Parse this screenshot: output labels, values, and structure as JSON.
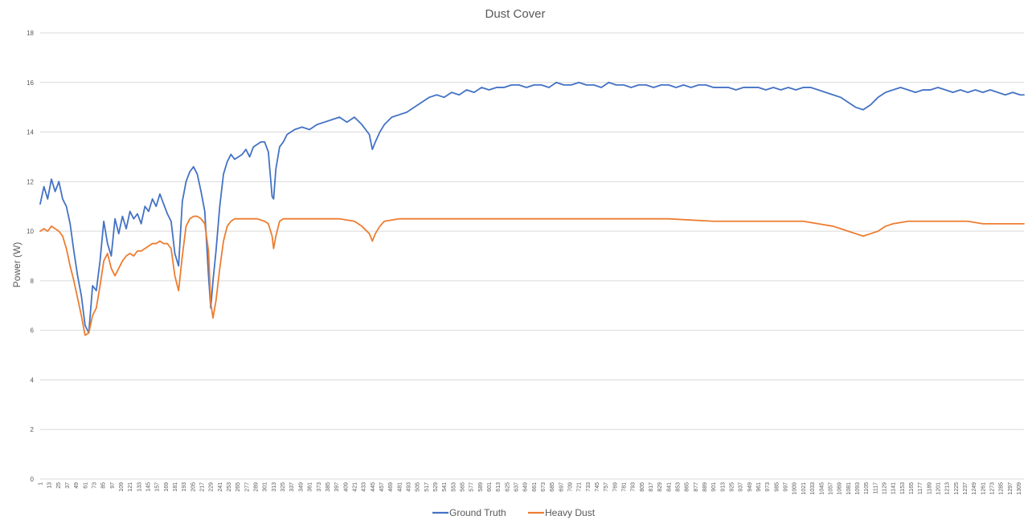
{
  "chart_data": {
    "type": "line",
    "title": "Dust Cover",
    "xlabel": "",
    "ylabel": "Power (W)",
    "ylim": [
      0,
      18
    ],
    "yticks": [
      0,
      2,
      4,
      6,
      8,
      10,
      12,
      14,
      16,
      18
    ],
    "grid": true,
    "legend_position": "bottom",
    "x_range": [
      1,
      1316
    ],
    "x_tick_start": 1,
    "x_tick_step": 12,
    "series": [
      {
        "name": "Ground Truth",
        "color": "#4472C4",
        "x": [
          1,
          6,
          11,
          16,
          21,
          26,
          31,
          36,
          41,
          46,
          51,
          56,
          61,
          66,
          71,
          76,
          81,
          86,
          91,
          96,
          101,
          106,
          111,
          116,
          121,
          126,
          131,
          136,
          141,
          146,
          151,
          156,
          161,
          166,
          171,
          176,
          181,
          186,
          191,
          196,
          201,
          206,
          211,
          216,
          221,
          226,
          229,
          232,
          236,
          241,
          246,
          251,
          256,
          261,
          266,
          271,
          276,
          281,
          286,
          291,
          296,
          301,
          306,
          311,
          313,
          316,
          321,
          326,
          331,
          341,
          351,
          361,
          371,
          381,
          391,
          401,
          411,
          421,
          431,
          441,
          445,
          449,
          455,
          461,
          471,
          481,
          491,
          501,
          511,
          521,
          531,
          541,
          551,
          561,
          571,
          581,
          591,
          601,
          611,
          621,
          631,
          641,
          651,
          661,
          671,
          681,
          691,
          701,
          711,
          721,
          731,
          741,
          751,
          761,
          771,
          781,
          791,
          801,
          811,
          821,
          831,
          841,
          851,
          861,
          871,
          881,
          891,
          901,
          911,
          921,
          931,
          941,
          951,
          961,
          971,
          981,
          991,
          1001,
          1011,
          1021,
          1031,
          1041,
          1051,
          1061,
          1071,
          1081,
          1091,
          1101,
          1111,
          1121,
          1131,
          1141,
          1151,
          1161,
          1171,
          1181,
          1191,
          1201,
          1211,
          1221,
          1231,
          1241,
          1251,
          1261,
          1271,
          1281,
          1291,
          1301,
          1311,
          1316
        ],
        "values": [
          11.1,
          11.8,
          11.3,
          12.1,
          11.6,
          12.0,
          11.3,
          11.0,
          10.3,
          9.2,
          8.2,
          7.4,
          6.2,
          5.9,
          7.8,
          7.6,
          8.8,
          10.4,
          9.5,
          9.0,
          10.5,
          9.9,
          10.6,
          10.1,
          10.8,
          10.5,
          10.7,
          10.3,
          11.0,
          10.8,
          11.3,
          11.0,
          11.5,
          11.1,
          10.7,
          10.4,
          9.1,
          8.6,
          11.2,
          12.0,
          12.4,
          12.6,
          12.3,
          11.6,
          10.8,
          8.2,
          6.9,
          8.0,
          9.2,
          11.0,
          12.3,
          12.8,
          13.1,
          12.9,
          13.0,
          13.1,
          13.3,
          13.0,
          13.4,
          13.5,
          13.6,
          13.6,
          13.2,
          11.4,
          11.3,
          12.5,
          13.4,
          13.6,
          13.9,
          14.1,
          14.2,
          14.1,
          14.3,
          14.4,
          14.5,
          14.6,
          14.4,
          14.6,
          14.3,
          13.9,
          13.3,
          13.6,
          14.0,
          14.3,
          14.6,
          14.7,
          14.8,
          15.0,
          15.2,
          15.4,
          15.5,
          15.4,
          15.6,
          15.5,
          15.7,
          15.6,
          15.8,
          15.7,
          15.8,
          15.8,
          15.9,
          15.9,
          15.8,
          15.9,
          15.9,
          15.8,
          16.0,
          15.9,
          15.9,
          16.0,
          15.9,
          15.9,
          15.8,
          16.0,
          15.9,
          15.9,
          15.8,
          15.9,
          15.9,
          15.8,
          15.9,
          15.9,
          15.8,
          15.9,
          15.8,
          15.9,
          15.9,
          15.8,
          15.8,
          15.8,
          15.7,
          15.8,
          15.8,
          15.8,
          15.7,
          15.8,
          15.7,
          15.8,
          15.7,
          15.8,
          15.8,
          15.7,
          15.6,
          15.5,
          15.4,
          15.2,
          15.0,
          14.9,
          15.1,
          15.4,
          15.6,
          15.7,
          15.8,
          15.7,
          15.6,
          15.7,
          15.7,
          15.8,
          15.7,
          15.6,
          15.7,
          15.6,
          15.7,
          15.6,
          15.7,
          15.6,
          15.5,
          15.6,
          15.5,
          15.5
        ]
      },
      {
        "name": "Heavy Dust",
        "color": "#ED7D31",
        "x": [
          1,
          6,
          11,
          16,
          21,
          26,
          31,
          36,
          41,
          46,
          51,
          56,
          61,
          66,
          71,
          76,
          81,
          86,
          91,
          96,
          101,
          106,
          111,
          116,
          121,
          126,
          131,
          136,
          141,
          146,
          151,
          156,
          161,
          166,
          171,
          176,
          181,
          186,
          191,
          196,
          201,
          206,
          211,
          216,
          221,
          226,
          229,
          232,
          236,
          241,
          246,
          251,
          256,
          261,
          271,
          281,
          291,
          301,
          306,
          311,
          313,
          316,
          321,
          326,
          341,
          361,
          381,
          401,
          421,
          431,
          441,
          445,
          449,
          455,
          461,
          481,
          501,
          541,
          601,
          661,
          721,
          781,
          841,
          901,
          961,
          1021,
          1041,
          1061,
          1071,
          1081,
          1091,
          1101,
          1111,
          1121,
          1131,
          1141,
          1161,
          1181,
          1201,
          1221,
          1241,
          1261,
          1281,
          1301,
          1316
        ],
        "values": [
          10.0,
          10.1,
          10.0,
          10.2,
          10.1,
          10.0,
          9.8,
          9.3,
          8.6,
          8.0,
          7.3,
          6.6,
          5.8,
          5.9,
          6.6,
          6.9,
          7.8,
          8.8,
          9.1,
          8.5,
          8.2,
          8.5,
          8.8,
          9.0,
          9.1,
          9.0,
          9.2,
          9.2,
          9.3,
          9.4,
          9.5,
          9.5,
          9.6,
          9.5,
          9.5,
          9.3,
          8.2,
          7.6,
          9.0,
          10.2,
          10.5,
          10.6,
          10.6,
          10.5,
          10.3,
          9.2,
          7.1,
          6.5,
          7.2,
          8.5,
          9.6,
          10.2,
          10.4,
          10.5,
          10.5,
          10.5,
          10.5,
          10.4,
          10.3,
          9.8,
          9.3,
          9.8,
          10.4,
          10.5,
          10.5,
          10.5,
          10.5,
          10.5,
          10.4,
          10.2,
          9.9,
          9.6,
          9.9,
          10.2,
          10.4,
          10.5,
          10.5,
          10.5,
          10.5,
          10.5,
          10.5,
          10.5,
          10.5,
          10.4,
          10.4,
          10.4,
          10.3,
          10.2,
          10.1,
          10.0,
          9.9,
          9.8,
          9.9,
          10.0,
          10.2,
          10.3,
          10.4,
          10.4,
          10.4,
          10.4,
          10.4,
          10.3,
          10.3,
          10.3,
          10.3
        ]
      }
    ]
  }
}
